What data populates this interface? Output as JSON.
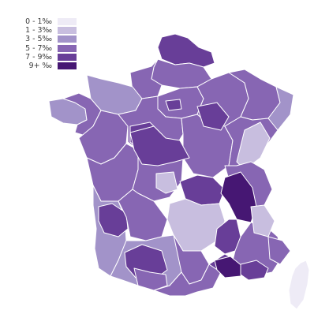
{
  "legend": {
    "items": [
      {
        "label": "0 - 1‰",
        "color": "#eeebf6"
      },
      {
        "label": "1 - 3‰",
        "color": "#c8bedf"
      },
      {
        "label": "3 - 5‰",
        "color": "#a293c9"
      },
      {
        "label": "5 - 7‰",
        "color": "#8766b3"
      },
      {
        "label": "7 - 9‰",
        "color": "#683e98"
      },
      {
        "label": "9+ ‰",
        "color": "#461773"
      }
    ]
  },
  "map": {
    "border_color": "#ffffff",
    "regions": [
      {
        "name": "nord-pas-de-calais",
        "cls": 4
      },
      {
        "name": "picardie",
        "cls": 3
      },
      {
        "name": "haute-normandie",
        "cls": 3
      },
      {
        "name": "basse-normandie",
        "cls": 2
      },
      {
        "name": "bretagne-west",
        "cls": 2
      },
      {
        "name": "bretagne-cotes",
        "cls": 3
      },
      {
        "name": "ile-de-france",
        "cls": 3
      },
      {
        "name": "paris",
        "cls": 4
      },
      {
        "name": "champagne",
        "cls": 3
      },
      {
        "name": "lorraine",
        "cls": 3
      },
      {
        "name": "alsace",
        "cls": 2
      },
      {
        "name": "pays-de-la-loire",
        "cls": 3
      },
      {
        "name": "centre",
        "cls": 3
      },
      {
        "name": "loir-et-cher",
        "cls": 4
      },
      {
        "name": "bourgogne",
        "cls": 3
      },
      {
        "name": "cote-dor",
        "cls": 4
      },
      {
        "name": "franche-comte",
        "cls": 3
      },
      {
        "name": "doubs-jura",
        "cls": 1
      },
      {
        "name": "poitou",
        "cls": 3
      },
      {
        "name": "limousin",
        "cls": 3
      },
      {
        "name": "creuse",
        "cls": 1
      },
      {
        "name": "allier",
        "cls": 4
      },
      {
        "name": "rhone-loire",
        "cls": 4
      },
      {
        "name": "ain-savoie",
        "cls": 3
      },
      {
        "name": "isere",
        "cls": 5
      },
      {
        "name": "auvergne",
        "cls": 1
      },
      {
        "name": "aquitaine",
        "cls": 2
      },
      {
        "name": "gironde",
        "cls": 4
      },
      {
        "name": "dordogne",
        "cls": 3
      },
      {
        "name": "midi-pyrenees-west",
        "cls": 2
      },
      {
        "name": "toulouse",
        "cls": 4
      },
      {
        "name": "aveyron",
        "cls": 3
      },
      {
        "name": "languedoc",
        "cls": 3
      },
      {
        "name": "gard",
        "cls": 4
      },
      {
        "name": "drome",
        "cls": 4
      },
      {
        "name": "provence",
        "cls": 3
      },
      {
        "name": "bouches-du-rhone",
        "cls": 5
      },
      {
        "name": "var",
        "cls": 4
      },
      {
        "name": "alpes-maritimes",
        "cls": 3
      },
      {
        "name": "hautes-alpes",
        "cls": 1
      },
      {
        "name": "pyrenees-orientales",
        "cls": 3
      },
      {
        "name": "corse",
        "cls": 0
      }
    ]
  }
}
